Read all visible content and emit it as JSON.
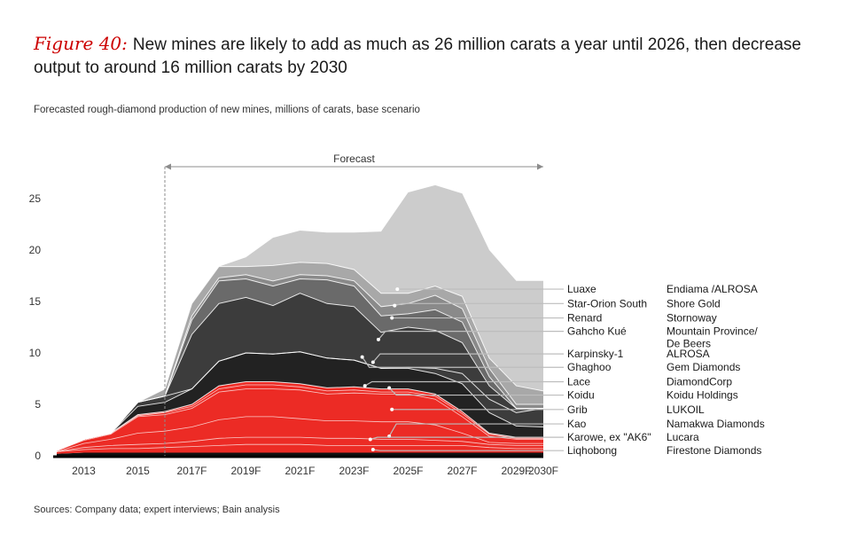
{
  "figure_label": "Figure 40:",
  "title": "New mines are likely to add as much as 26 million carats a year until 2026, then decrease output to around 16 million carats by 2030",
  "subtitle": "Forecasted rough-diamond production of new mines, millions of carats, base scenario",
  "source": "Sources: Company data; expert interviews; Bain analysis",
  "colors": {
    "luaxe": "#cccccc",
    "star_orion": "#a8a8a8",
    "renard": "#8a8a8a",
    "gahcho": "#6a6a6a",
    "karpinsky": "#3c3c3c",
    "dark": "#222222",
    "red": "#ec2b25",
    "base": "#111111",
    "forecast": "#8c8c8c"
  },
  "chart_data": {
    "type": "area",
    "title": "Forecasted rough-diamond production of new mines, millions of carats, base scenario",
    "xlabel": "",
    "ylabel": "millions of carats",
    "ylim": [
      0,
      25
    ],
    "yticks": [
      0,
      5,
      10,
      15,
      20,
      25
    ],
    "years": [
      2012,
      2013,
      2014,
      2015,
      2016,
      2017,
      2018,
      2019,
      2020,
      2021,
      2022,
      2023,
      2024,
      2025,
      2026,
      2027,
      2028,
      2029,
      2030
    ],
    "xtick_labels": [
      {
        "year": 2013,
        "label": "2013"
      },
      {
        "year": 2015,
        "label": "2015"
      },
      {
        "year": 2017,
        "label": "2017F"
      },
      {
        "year": 2019,
        "label": "2019F"
      },
      {
        "year": 2021,
        "label": "2021F"
      },
      {
        "year": 2023,
        "label": "2023F"
      },
      {
        "year": 2025,
        "label": "2025F"
      },
      {
        "year": 2027,
        "label": "2027F"
      },
      {
        "year": 2029,
        "label": "2029F"
      },
      {
        "year": 2030,
        "label": "2030F"
      }
    ],
    "forecast_label": "Forecast",
    "forecast_range": [
      2016,
      2030
    ],
    "cumulative_boundaries": [
      {
        "name": "base",
        "color_key": "base",
        "values": [
          0.2,
          0.3,
          0.3,
          0.3,
          0.3,
          0.3,
          0.3,
          0.3,
          0.3,
          0.3,
          0.3,
          0.3,
          0.3,
          0.3,
          0.3,
          0.3,
          0.3,
          0.3,
          0.3
        ]
      },
      {
        "name": "red-total",
        "color_key": "red",
        "values": [
          0.5,
          1.6,
          2.2,
          4.0,
          4.3,
          5.0,
          6.8,
          7.2,
          7.2,
          7.0,
          6.6,
          6.7,
          6.5,
          6.5,
          6.0,
          4.3,
          2.2,
          1.8,
          1.8
        ]
      },
      {
        "name": "dark-mid",
        "color_key": "dark",
        "values": [
          0.5,
          1.6,
          2.2,
          4.8,
          5.2,
          6.5,
          9.2,
          10.0,
          9.9,
          10.1,
          9.5,
          9.3,
          8.5,
          8.5,
          8.0,
          7.0,
          4.2,
          2.9,
          2.8
        ]
      },
      {
        "name": "mid-dark",
        "color_key": "karpinsky",
        "values": [
          0.5,
          1.6,
          2.2,
          5.2,
          5.8,
          6.5,
          9.2,
          10.0,
          9.9,
          10.1,
          9.5,
          9.3,
          8.5,
          8.6,
          8.5,
          8.0,
          5.5,
          4.2,
          4.6
        ]
      },
      {
        "name": "karpinsky",
        "color_key": "karpinsky",
        "values": [
          0.5,
          1.6,
          2.2,
          5.2,
          5.8,
          11.8,
          14.8,
          15.4,
          14.6,
          15.8,
          14.8,
          14.5,
          12.0,
          12.5,
          12.2,
          11.0,
          6.8,
          4.6,
          4.6
        ]
      },
      {
        "name": "gahcho-kue",
        "color_key": "gahcho",
        "values": [
          0.5,
          1.6,
          2.2,
          5.2,
          5.8,
          13.2,
          17.0,
          17.2,
          16.5,
          17.2,
          17.1,
          16.5,
          13.6,
          13.8,
          14.2,
          13.0,
          7.7,
          4.6,
          4.6
        ]
      },
      {
        "name": "renard",
        "color_key": "renard",
        "values": [
          0.5,
          1.6,
          2.2,
          5.2,
          5.8,
          13.6,
          17.3,
          17.6,
          17.0,
          17.6,
          17.5,
          17.0,
          14.5,
          14.8,
          15.6,
          14.3,
          8.5,
          5.0,
          5.0
        ]
      },
      {
        "name": "star-orion-south",
        "color_key": "star_orion",
        "values": [
          0.5,
          1.6,
          2.2,
          5.2,
          6.5,
          14.8,
          18.4,
          18.4,
          18.5,
          18.8,
          18.7,
          18.1,
          15.8,
          15.8,
          16.5,
          15.5,
          9.5,
          6.8,
          6.3
        ]
      },
      {
        "name": "luaxe",
        "color_key": "luaxe",
        "values": [
          0.5,
          1.6,
          2.2,
          5.2,
          6.5,
          14.8,
          18.4,
          19.3,
          21.2,
          21.9,
          21.7,
          21.7,
          21.8,
          25.6,
          26.3,
          25.5,
          20.0,
          17.0,
          17.0
        ]
      }
    ],
    "red_internal_lines": [
      [
        0.4,
        0.6,
        0.7,
        0.7,
        0.8,
        0.9,
        1.0,
        1.1,
        1.1,
        1.1,
        1.0,
        1.0,
        1.0,
        1.0,
        1.0,
        1.0,
        0.8,
        0.7,
        0.7
      ],
      [
        0.4,
        0.8,
        1.0,
        1.1,
        1.2,
        1.4,
        1.7,
        1.8,
        1.8,
        1.8,
        1.7,
        1.7,
        1.6,
        1.6,
        1.5,
        1.4,
        1.1,
        1.0,
        1.0
      ],
      [
        0.4,
        1.2,
        1.6,
        2.2,
        2.4,
        2.8,
        3.5,
        3.8,
        3.8,
        3.6,
        3.4,
        3.4,
        3.3,
        3.3,
        3.0,
        2.2,
        1.3,
        1.2,
        1.2
      ],
      [
        0.5,
        1.5,
        2.1,
        3.8,
        4.0,
        4.6,
        6.2,
        6.5,
        6.5,
        6.4,
        6.0,
        6.1,
        6.0,
        6.0,
        5.5,
        3.8,
        1.9,
        1.6,
        1.6
      ],
      [
        0.5,
        1.6,
        2.2,
        3.9,
        4.2,
        4.8,
        6.5,
        6.9,
        6.9,
        6.7,
        6.3,
        6.4,
        6.2,
        6.2,
        5.8,
        4.1,
        2.1,
        1.7,
        1.7
      ]
    ],
    "mines": [
      {
        "name": "Luaxe",
        "owner": "Endiama /ALROSA",
        "label_y": 16.2,
        "anchor": {
          "year": 2024.6,
          "value": 16.2
        }
      },
      {
        "name": "Star-Orion South",
        "owner": "Shore Gold",
        "label_y": 14.8,
        "anchor": {
          "year": 2024.5,
          "value": 14.6
        }
      },
      {
        "name": "Renard",
        "owner": "Stornoway",
        "label_y": 13.4,
        "anchor": {
          "year": 2024.4,
          "value": 13.4
        }
      },
      {
        "name": "Gahcho Kué",
        "owner": "Mountain Province/\nDe Beers",
        "label_y": 12.1,
        "anchor": {
          "year": 2023.9,
          "value": 11.3
        }
      },
      {
        "name": "Karpinsky-1",
        "owner": "ALROSA",
        "label_y": 9.9,
        "anchor": {
          "year": 2023.7,
          "value": 9.1
        }
      },
      {
        "name": "Ghaghoo",
        "owner": "Gem Diamonds",
        "label_y": 8.6,
        "anchor": {
          "year": 2023.3,
          "value": 9.6
        }
      },
      {
        "name": "Lace",
        "owner": "DiamondCorp",
        "label_y": 7.2,
        "anchor": {
          "year": 2023.4,
          "value": 6.8
        }
      },
      {
        "name": "Koidu",
        "owner": "Koidu Holdings",
        "label_y": 5.9,
        "anchor": {
          "year": 2024.3,
          "value": 6.6
        }
      },
      {
        "name": "Grib",
        "owner": "LUKOIL",
        "label_y": 4.5,
        "anchor": {
          "year": 2024.4,
          "value": 4.5
        }
      },
      {
        "name": "Kao",
        "owner": "Namakwa Diamonds",
        "label_y": 3.1,
        "anchor": {
          "year": 2024.3,
          "value": 1.9
        }
      },
      {
        "name": "Karowe, ex \"AK6\"",
        "owner": "Lucara",
        "label_y": 1.8,
        "anchor": {
          "year": 2023.6,
          "value": 1.6
        }
      },
      {
        "name": "Liqhobong",
        "owner": "Firestone Diamonds",
        "label_y": 0.5,
        "anchor": {
          "year": 2023.7,
          "value": 0.6
        }
      }
    ]
  }
}
